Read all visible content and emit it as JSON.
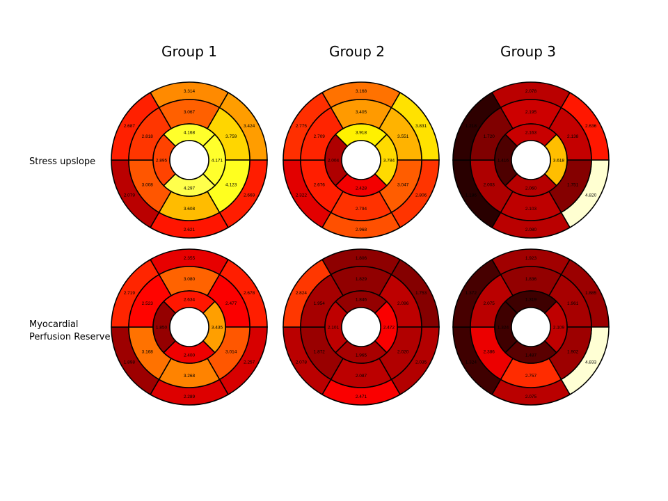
{
  "chart_data": {
    "type": "heatmap",
    "subtype": "bullseye-17-segment",
    "columns": [
      "Group 1",
      "Group 2",
      "Group 3"
    ],
    "rows": [
      "Stress upslope",
      "Myocardial\nPerfusion Reserve"
    ],
    "colormap": "hot",
    "color_range": [
      1.0,
      5.0
    ],
    "segment_order": "rings outer→inner: basal (6), mid (6), apical (4); each ring listed clockwise starting at the top segment",
    "charts": [
      {
        "group": "Group 1",
        "metric": "Stress upslope",
        "basal": [
          3.314,
          3.424,
          2.669,
          2.621,
          2.079,
          2.687
        ],
        "mid": [
          3.067,
          3.759,
          4.123,
          3.608,
          3.008,
          2.818
        ],
        "apical": [
          4.168,
          4.171,
          4.297,
          2.895
        ]
      },
      {
        "group": "Group 2",
        "metric": "Stress upslope",
        "basal": [
          3.168,
          3.831,
          2.806,
          2.968,
          2.322,
          2.775
        ],
        "mid": [
          3.405,
          3.551,
          3.047,
          2.794,
          2.676,
          2.709
        ],
        "apical": [
          3.918,
          3.784,
          2.428,
          2.004
        ]
      },
      {
        "group": "Group 3",
        "metric": "Stress upslope",
        "basal": [
          2.078,
          2.636,
          4.82,
          2.08,
          1.186,
          1.218
        ],
        "mid": [
          2.195,
          2.138,
          1.751,
          2.103,
          2.003,
          1.72
        ],
        "apical": [
          2.163,
          3.618,
          2.06,
          1.416
        ]
      },
      {
        "group": "Group 1",
        "metric": "Myocardial\nPerfusion Reserve",
        "basal": [
          2.355,
          2.678,
          2.257,
          2.289,
          1.898,
          2.719
        ],
        "mid": [
          3.08,
          2.477,
          3.014,
          3.268,
          3.168,
          2.523
        ],
        "apical": [
          2.634,
          3.435,
          2.4,
          1.85
        ]
      },
      {
        "group": "Group 2",
        "metric": "Myocardial\nPerfusion Reserve",
        "basal": [
          1.806,
          1.753,
          2.035,
          2.471,
          2.078,
          2.824
        ],
        "mid": [
          1.829,
          2.096,
          2.02,
          2.087,
          1.872,
          1.954
        ],
        "apical": [
          1.846,
          2.472,
          1.965,
          2.101
        ]
      },
      {
        "group": "Group 3",
        "metric": "Myocardial\nPerfusion Reserve",
        "basal": [
          1.923,
          1.885,
          4.833,
          2.075,
          1.324,
          1.372
        ],
        "mid": [
          1.836,
          1.961,
          1.902,
          2.757,
          2.386,
          2.075
        ],
        "apical": [
          1.319,
          2.109,
          1.487,
          1.324
        ]
      }
    ]
  }
}
